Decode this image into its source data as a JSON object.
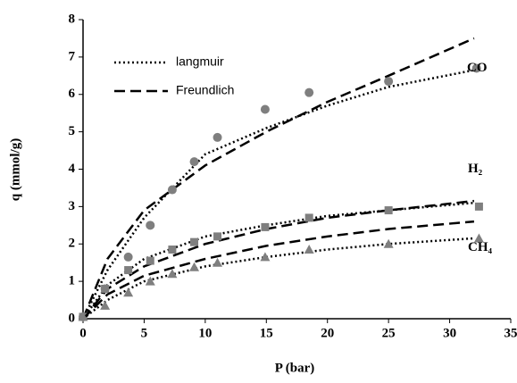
{
  "chart_data": {
    "type": "scatter",
    "xlabel": "P (bar)",
    "ylabel": "q (mmol/g)",
    "xlim": [
      0,
      35
    ],
    "xticks": [
      0,
      5,
      10,
      15,
      20,
      25,
      30,
      35
    ],
    "ylim": [
      0,
      8
    ],
    "yticks": [
      0,
      1,
      2,
      3,
      4,
      5,
      6,
      7,
      8
    ],
    "point_color": "#7f7f7f",
    "line_color": "#000000",
    "fits": [
      {
        "name": "langmuir",
        "style": "dotted"
      },
      {
        "name": "Freundlich",
        "style": "dashed"
      }
    ],
    "fit_x": [
      0,
      2,
      5,
      10,
      15,
      20,
      25,
      32
    ],
    "series": [
      {
        "name": "CO",
        "marker": "circle",
        "x": [
          0,
          1.8,
          3.7,
          5.5,
          7.3,
          9.1,
          11,
          14.9,
          18.5,
          25,
          32.2
        ],
        "values": [
          0.05,
          0.8,
          1.65,
          2.5,
          3.45,
          4.2,
          4.85,
          5.6,
          6.05,
          6.35,
          6.7
        ],
        "fit_values": [
          [
            0,
            1.3,
            2.7,
            4.4,
            5.1,
            5.7,
            6.2,
            6.65
          ],
          [
            0,
            1.6,
            2.9,
            4.1,
            5.0,
            5.8,
            6.5,
            7.5
          ]
        ]
      },
      {
        "name": "H₂",
        "marker": "square",
        "x": [
          0,
          1.8,
          3.7,
          5.5,
          7.3,
          9.1,
          11,
          14.9,
          18.5,
          25,
          32.4
        ],
        "values": [
          0.05,
          0.8,
          1.3,
          1.55,
          1.85,
          2.05,
          2.2,
          2.45,
          2.7,
          2.9,
          3.0
        ],
        "fit_values": [
          [
            0,
            0.9,
            1.6,
            2.2,
            2.5,
            2.75,
            2.9,
            3.1
          ],
          [
            0,
            0.8,
            1.4,
            2.0,
            2.4,
            2.7,
            2.9,
            3.15
          ]
        ]
      },
      {
        "name": "CH₄",
        "marker": "triangle",
        "x": [
          0,
          1.8,
          3.7,
          5.5,
          7.3,
          9.1,
          11,
          14.9,
          18.5,
          25,
          32.4
        ],
        "values": [
          0.05,
          0.35,
          0.7,
          1.0,
          1.2,
          1.38,
          1.5,
          1.65,
          1.85,
          2.0,
          2.15
        ],
        "fit_values": [
          [
            0,
            0.5,
            1.0,
            1.4,
            1.65,
            1.85,
            2.0,
            2.15
          ],
          [
            0,
            0.65,
            1.15,
            1.6,
            1.95,
            2.2,
            2.4,
            2.6
          ]
        ]
      }
    ]
  }
}
